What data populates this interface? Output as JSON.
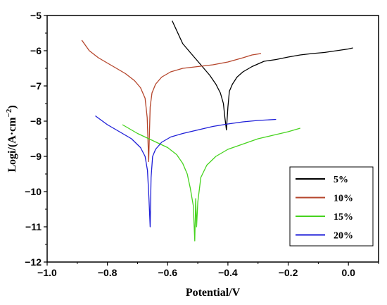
{
  "chart_data": {
    "type": "line",
    "title": "",
    "xlabel": "Potential/V",
    "ylabel": "Logi/(A·cm",
    "ylabel_superscript": "−2",
    "ylabel_close": ")",
    "xlim": [
      -1.0,
      0.1
    ],
    "ylim": [
      -12,
      -5
    ],
    "xticks": [
      -1.0,
      -0.8,
      -0.6,
      -0.4,
      -0.2,
      0.0
    ],
    "xtick_labels": [
      "−1.0",
      "−0.8",
      "−0.6",
      "−0.4",
      "−0.2",
      "0.0"
    ],
    "yticks": [
      -12,
      -11,
      -10,
      -9,
      -8,
      -7,
      -6,
      -5
    ],
    "ytick_labels": [
      "−12",
      "−11",
      "−10",
      "−9",
      "−8",
      "−7",
      "−6",
      "−5"
    ],
    "grid": false,
    "legend_position": "lower-right",
    "series": [
      {
        "name": "5%",
        "color": "#000000",
        "x": [
          -0.585,
          -0.55,
          -0.52,
          -0.49,
          -0.46,
          -0.44,
          -0.425,
          -0.415,
          -0.41,
          -0.405,
          -0.4,
          -0.395,
          -0.385,
          -0.37,
          -0.35,
          -0.32,
          -0.28,
          -0.24,
          -0.2,
          -0.16,
          -0.12,
          -0.08,
          -0.04,
          0.0,
          0.015
        ],
        "y": [
          -5.15,
          -5.8,
          -6.1,
          -6.4,
          -6.7,
          -6.95,
          -7.2,
          -7.5,
          -7.9,
          -8.25,
          -7.6,
          -7.15,
          -6.95,
          -6.75,
          -6.6,
          -6.45,
          -6.3,
          -6.25,
          -6.18,
          -6.12,
          -6.08,
          -6.05,
          -6.0,
          -5.95,
          -5.92
        ]
      },
      {
        "name": "10%",
        "color": "#b5452b",
        "x": [
          -0.885,
          -0.86,
          -0.83,
          -0.8,
          -0.77,
          -0.74,
          -0.71,
          -0.69,
          -0.675,
          -0.668,
          -0.663,
          -0.658,
          -0.652,
          -0.64,
          -0.62,
          -0.59,
          -0.55,
          -0.5,
          -0.45,
          -0.4,
          -0.35,
          -0.32,
          -0.29
        ],
        "y": [
          -5.7,
          -6.0,
          -6.2,
          -6.35,
          -6.5,
          -6.65,
          -6.85,
          -7.05,
          -7.35,
          -7.9,
          -9.15,
          -7.6,
          -7.2,
          -6.95,
          -6.75,
          -6.6,
          -6.5,
          -6.45,
          -6.4,
          -6.32,
          -6.2,
          -6.12,
          -6.08
        ]
      },
      {
        "name": "15%",
        "color": "#46d31e",
        "x": [
          -0.75,
          -0.7,
          -0.65,
          -0.6,
          -0.57,
          -0.55,
          -0.535,
          -0.525,
          -0.515,
          -0.51,
          -0.507,
          -0.504,
          -0.5,
          -0.49,
          -0.47,
          -0.44,
          -0.4,
          -0.35,
          -0.3,
          -0.25,
          -0.2,
          -0.16
        ],
        "y": [
          -8.1,
          -8.35,
          -8.55,
          -8.75,
          -8.95,
          -9.2,
          -9.5,
          -9.9,
          -10.4,
          -11.4,
          -10.2,
          -11.0,
          -10.3,
          -9.6,
          -9.25,
          -9.0,
          -8.8,
          -8.65,
          -8.5,
          -8.4,
          -8.3,
          -8.2
        ]
      },
      {
        "name": "20%",
        "color": "#1e1ed8",
        "x": [
          -0.84,
          -0.8,
          -0.76,
          -0.72,
          -0.69,
          -0.675,
          -0.667,
          -0.662,
          -0.658,
          -0.655,
          -0.65,
          -0.64,
          -0.62,
          -0.59,
          -0.55,
          -0.5,
          -0.45,
          -0.4,
          -0.35,
          -0.3,
          -0.24
        ],
        "y": [
          -7.85,
          -8.1,
          -8.3,
          -8.5,
          -8.75,
          -9.0,
          -9.4,
          -10.2,
          -11.0,
          -9.6,
          -9.0,
          -8.8,
          -8.6,
          -8.45,
          -8.35,
          -8.25,
          -8.15,
          -8.08,
          -8.02,
          -7.98,
          -7.95
        ]
      }
    ]
  }
}
